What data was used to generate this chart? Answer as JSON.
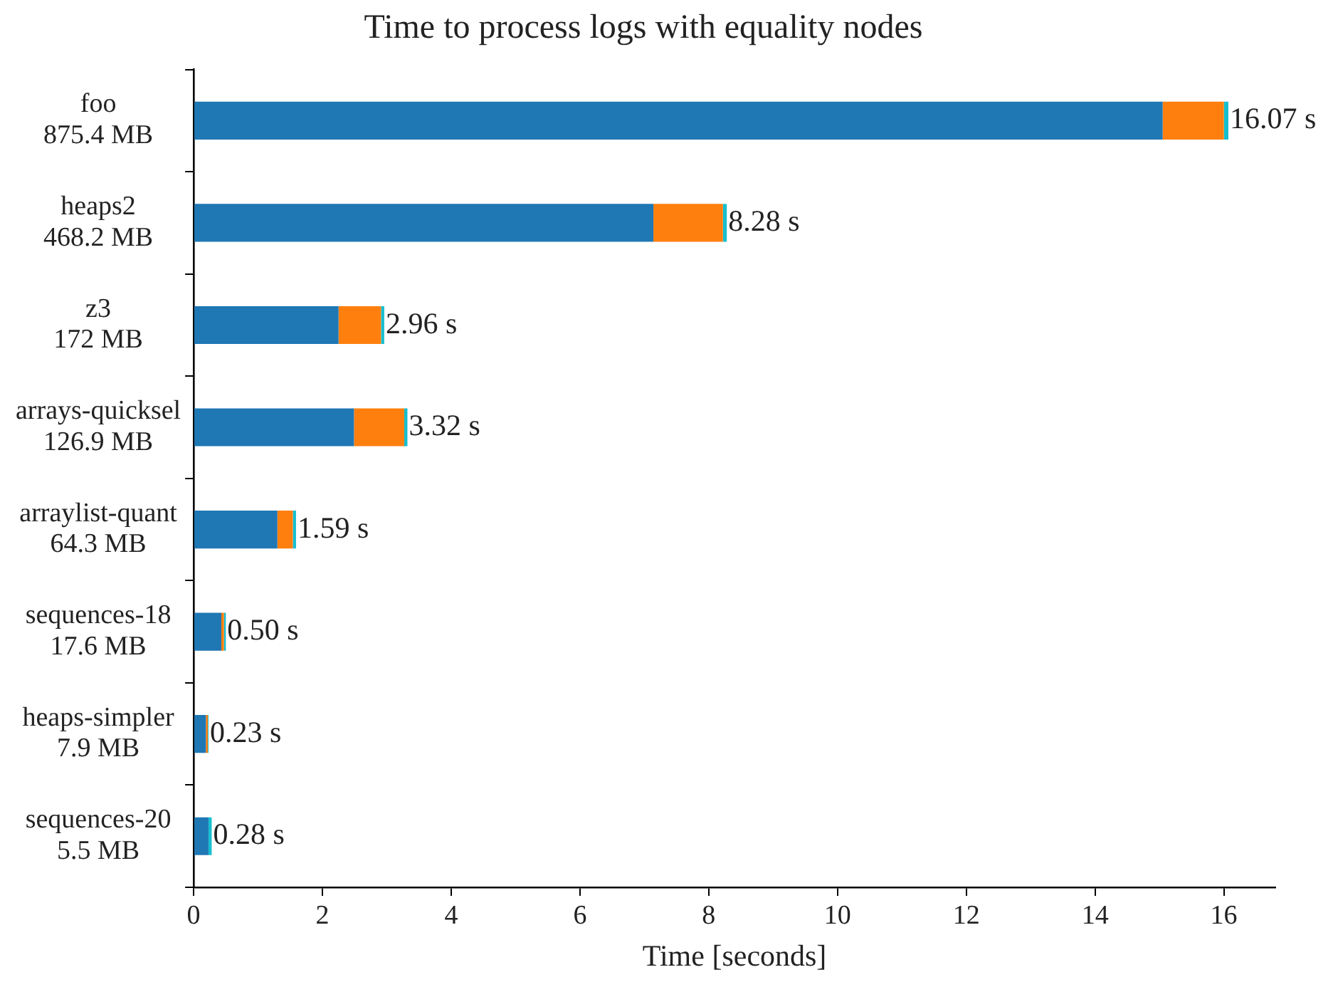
{
  "chart_data": {
    "type": "bar",
    "title": "Time to process logs with equality nodes",
    "xlabel": "Time [seconds]",
    "orientation": "horizontal",
    "stacked": true,
    "categories": [
      "foo\n875.4 MB",
      "heaps2\n468.2 MB",
      "z3\n172 MB",
      "arrays-quicksel\n126.9 MB",
      "arraylist-quant\n64.3 MB",
      "sequences-18\n17.6 MB",
      "heaps-simpler\n7.9 MB",
      "sequences-20\n5.5 MB"
    ],
    "series": [
      {
        "color": "#1f77b4",
        "values": [
          15.05,
          7.14,
          2.25,
          2.49,
          1.3,
          0.43,
          0.19,
          0.23
        ]
      },
      {
        "color": "#ff7f0e",
        "values": [
          0.95,
          1.08,
          0.66,
          0.78,
          0.24,
          0.04,
          0.03,
          0
        ]
      },
      {
        "color": "#17becf",
        "values": [
          0.07,
          0.06,
          0.05,
          0.05,
          0.05,
          0.03,
          0.01,
          0.05
        ]
      }
    ],
    "totals": [
      "16.07 s",
      "8.28 s",
      "2.96 s",
      "3.32 s",
      "1.59 s",
      "0.50 s",
      "0.23 s",
      "0.28 s"
    ],
    "xlim": [
      0,
      16.8
    ],
    "xticks": [
      0,
      2,
      4,
      6,
      8,
      10,
      12,
      14,
      16
    ],
    "grid": false,
    "legend": false
  }
}
